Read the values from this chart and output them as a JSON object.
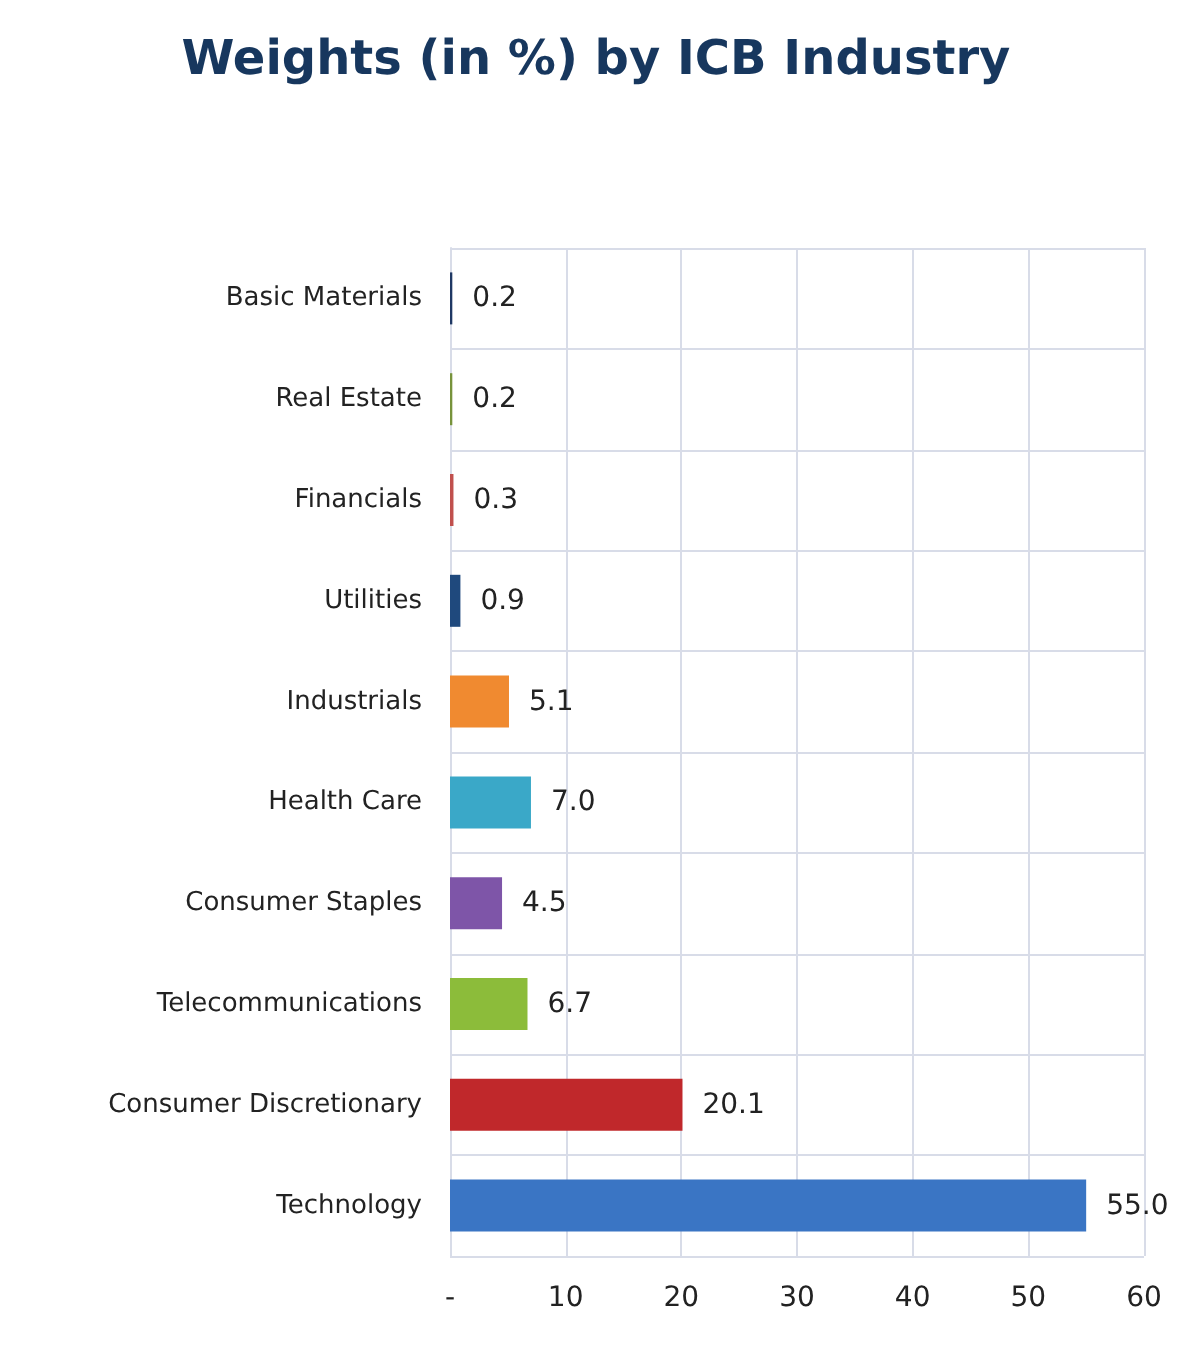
{
  "chart_data": {
    "type": "bar",
    "orientation": "horizontal",
    "title": "Weights (in %) by ICB Industry",
    "categories": [
      "Basic Materials",
      "Real Estate",
      "Financials",
      "Utilities",
      "Industrials",
      "Health Care",
      "Consumer Staples",
      "Telecommunications",
      "Consumer Discretionary",
      "Technology"
    ],
    "values": [
      0.2,
      0.2,
      0.3,
      0.9,
      5.1,
      7.0,
      4.5,
      6.7,
      20.1,
      55.0
    ],
    "colors": [
      "#1f3864",
      "#77933c",
      "#c0504d",
      "#1f497d",
      "#f08a30",
      "#3aa8c8",
      "#7e55a8",
      "#8cbc3a",
      "#c0282b",
      "#3a75c4"
    ],
    "value_labels": [
      "0.2",
      "0.2",
      "0.3",
      "0.9",
      "5.1",
      "7.0",
      "4.5",
      "6.7",
      "20.1",
      "55.0"
    ],
    "xlim": [
      0,
      60
    ],
    "xticks": [
      {
        "value": 0,
        "label": "-"
      },
      10,
      20,
      30,
      40,
      50,
      60
    ],
    "grid": true
  }
}
